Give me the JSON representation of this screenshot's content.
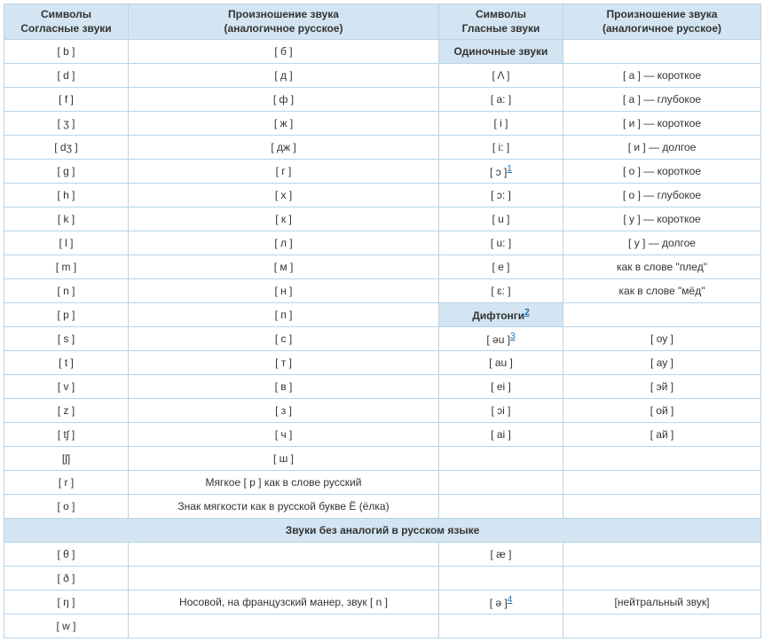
{
  "headers": {
    "col1_line1": "Символы",
    "col1_line2": "Согласные звуки",
    "col2_line1": "Произношение звука",
    "col2_line2": "(аналогичное русское)",
    "col3_line1": "Символы",
    "col3_line2": "Гласные звуки",
    "col4_line1": "Произношение звука",
    "col4_line2": "(аналогичное русское)"
  },
  "subheaders": {
    "single_vowels": "Одиночные звуки",
    "diphthongs": "Дифтонги",
    "no_analogies": "Звуки без аналогий в русском языке"
  },
  "footnotes": {
    "f1": "1",
    "f2": "2",
    "f3": "3",
    "f4": "4"
  },
  "rows": [
    {
      "c1": "[ b ]",
      "c2": "[ б ]",
      "c3_sub": true,
      "c4": ""
    },
    {
      "c1": "[ d ]",
      "c2": "[ д ]",
      "c3": "[ Λ ]",
      "c4": "[ а ] — короткое"
    },
    {
      "c1": "[ f ]",
      "c2": "[ ф ]",
      "c3": "[ a: ]",
      "c4": "[ а ] — глубокое"
    },
    {
      "c1": "[ ʒ ]",
      "c2": "[ ж ]",
      "c3": "[ i ]",
      "c4": "[ и ] — короткое"
    },
    {
      "c1": "[ dʒ ]",
      "c2": "[ дж ]",
      "c3": "[ i: ]",
      "c4": "[ и ] — долгое"
    },
    {
      "c1": "[ g ]",
      "c2": "[ г ]",
      "c3": "[ ɔ ]",
      "c3_fn": "1",
      "c4": "[ о ] — короткое"
    },
    {
      "c1": "[ h ]",
      "c2": "[ х ]",
      "c3": "[ ɔ: ]",
      "c4": "[ о ] — глубокое"
    },
    {
      "c1": "[ k ]",
      "c2": "[ к ]",
      "c3": "[ u ]",
      "c4": "[ у ] — короткое"
    },
    {
      "c1": "[ l ]",
      "c2": "[ л ]",
      "c3": "[ u: ]",
      "c4": "[ у ] — долгое"
    },
    {
      "c1": "[ m ]",
      "c2": "[ м ]",
      "c3": "[ e ]",
      "c4": "как в слове \"плед\""
    },
    {
      "c1": "[ n ]",
      "c2": "[ н ]",
      "c3": "[ ɛ: ]",
      "c4": "как в слове \"мёд\""
    },
    {
      "c1": "[ p ]",
      "c2": "[ п ]",
      "c3_sub2": true,
      "c4": ""
    },
    {
      "c1": "[ s ]",
      "c2": "[ с ]",
      "c3": "[ əu ]",
      "c3_fn": "3",
      "c4": "[ оу ]"
    },
    {
      "c1": "[ t ]",
      "c2": "[ т ]",
      "c3": "[ au ]",
      "c4": "[ ау ]"
    },
    {
      "c1": "[ v ]",
      "c2": "[ в ]",
      "c3": "[ ei ]",
      "c4": "[ эй ]"
    },
    {
      "c1": "[ z ]",
      "c2": "[ з ]",
      "c3": "[ ɔi ]",
      "c4": "[ ой ]"
    },
    {
      "c1": "[ tʃ ]",
      "c2": "[ ч ]",
      "c3": "[ ai ]",
      "c4": "[ ай ]"
    },
    {
      "c1": "[ʃ]",
      "c2": "[ ш ]",
      "c3": "",
      "c4": ""
    },
    {
      "c1": "[ r ]",
      "c2": "Мягкое [ р ] как в слове русский",
      "c3": "",
      "c4": ""
    },
    {
      "c1": "[ о ]",
      "c2": "Знак мягкости как в русской букве Ё (ёлка)",
      "c3": "",
      "c4": ""
    }
  ],
  "no_analogies_rows": [
    {
      "c1": "[ θ ]",
      "c2": "",
      "c3": "[ æ ]",
      "c4": ""
    },
    {
      "c1": "[ ð ]",
      "c2": "",
      "c3": "",
      "c4": ""
    },
    {
      "c1": "[ ŋ ]",
      "c2": "Носовой, на французский манер, звук [ n ]",
      "c3": "[ ə ]",
      "c3_fn": "4",
      "c4": "[нейтральный звук]"
    },
    {
      "c1": "[ w ]",
      "c2": "",
      "c3": "",
      "c4": ""
    }
  ],
  "colors": {
    "border": "#b8d4e8",
    "header_bg": "#d3e5f2",
    "text": "#333333",
    "link": "#1a6fb0",
    "bg": "#ffffff"
  }
}
